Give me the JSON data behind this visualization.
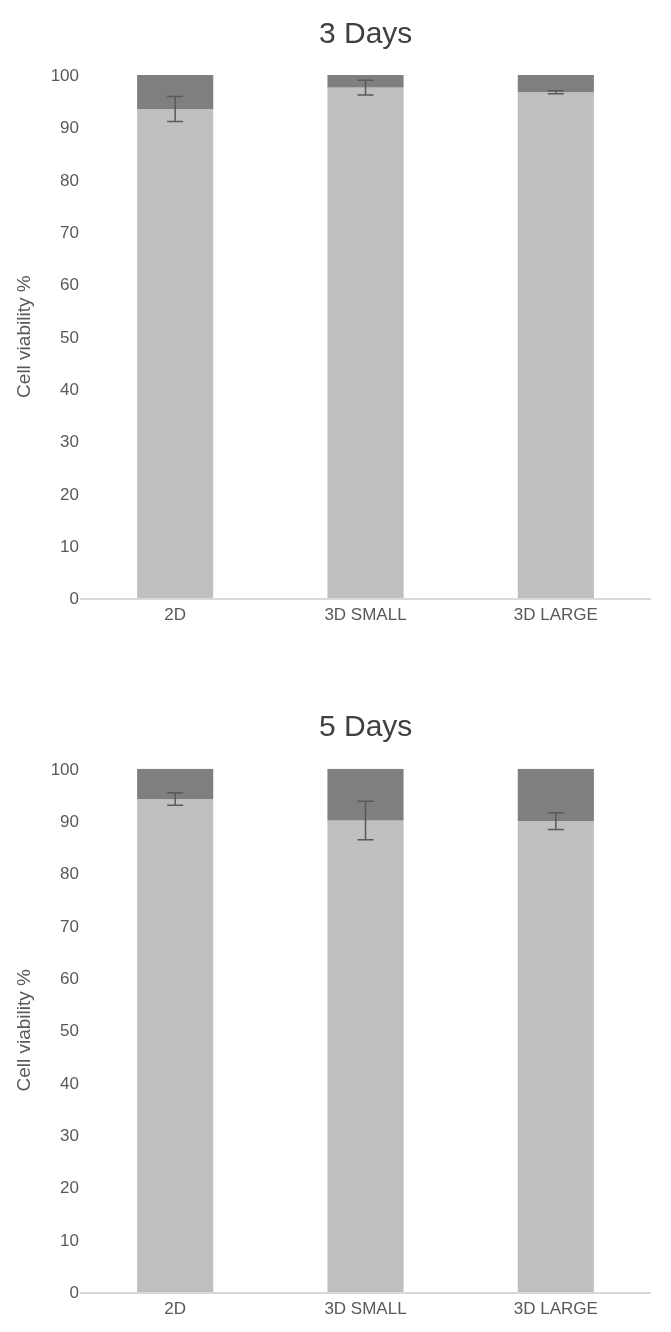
{
  "chart_data": [
    {
      "type": "bar",
      "title": "3 Days",
      "ylabel": "Cell viability %",
      "categories": [
        "2D",
        "3D SMALL",
        "3D LARGE"
      ],
      "stacked": true,
      "series": [
        {
          "color": "#bfbfbf",
          "values": [
            93.5,
            97.6,
            96.7
          ],
          "errors": [
            2.4,
            1.4,
            0.3
          ]
        },
        {
          "color": "#7f7f7f",
          "values": [
            6.5,
            2.4,
            3.3
          ]
        }
      ],
      "ylim": [
        0,
        100
      ],
      "yticks": [
        0,
        10,
        20,
        30,
        40,
        50,
        60,
        70,
        80,
        90,
        100
      ]
    },
    {
      "type": "bar",
      "title": "5 Days",
      "ylabel": "Cell viability %",
      "categories": [
        "2D",
        "3D SMALL",
        "3D LARGE"
      ],
      "stacked": true,
      "series": [
        {
          "color": "#bfbfbf",
          "values": [
            94.2,
            90.1,
            90.0
          ],
          "errors": [
            1.2,
            3.7,
            1.6
          ]
        },
        {
          "color": "#7f7f7f",
          "values": [
            5.8,
            9.9,
            10.0
          ]
        }
      ],
      "ylim": [
        0,
        100
      ],
      "yticks": [
        0,
        10,
        20,
        30,
        40,
        50,
        60,
        70,
        80,
        90,
        100
      ]
    }
  ]
}
